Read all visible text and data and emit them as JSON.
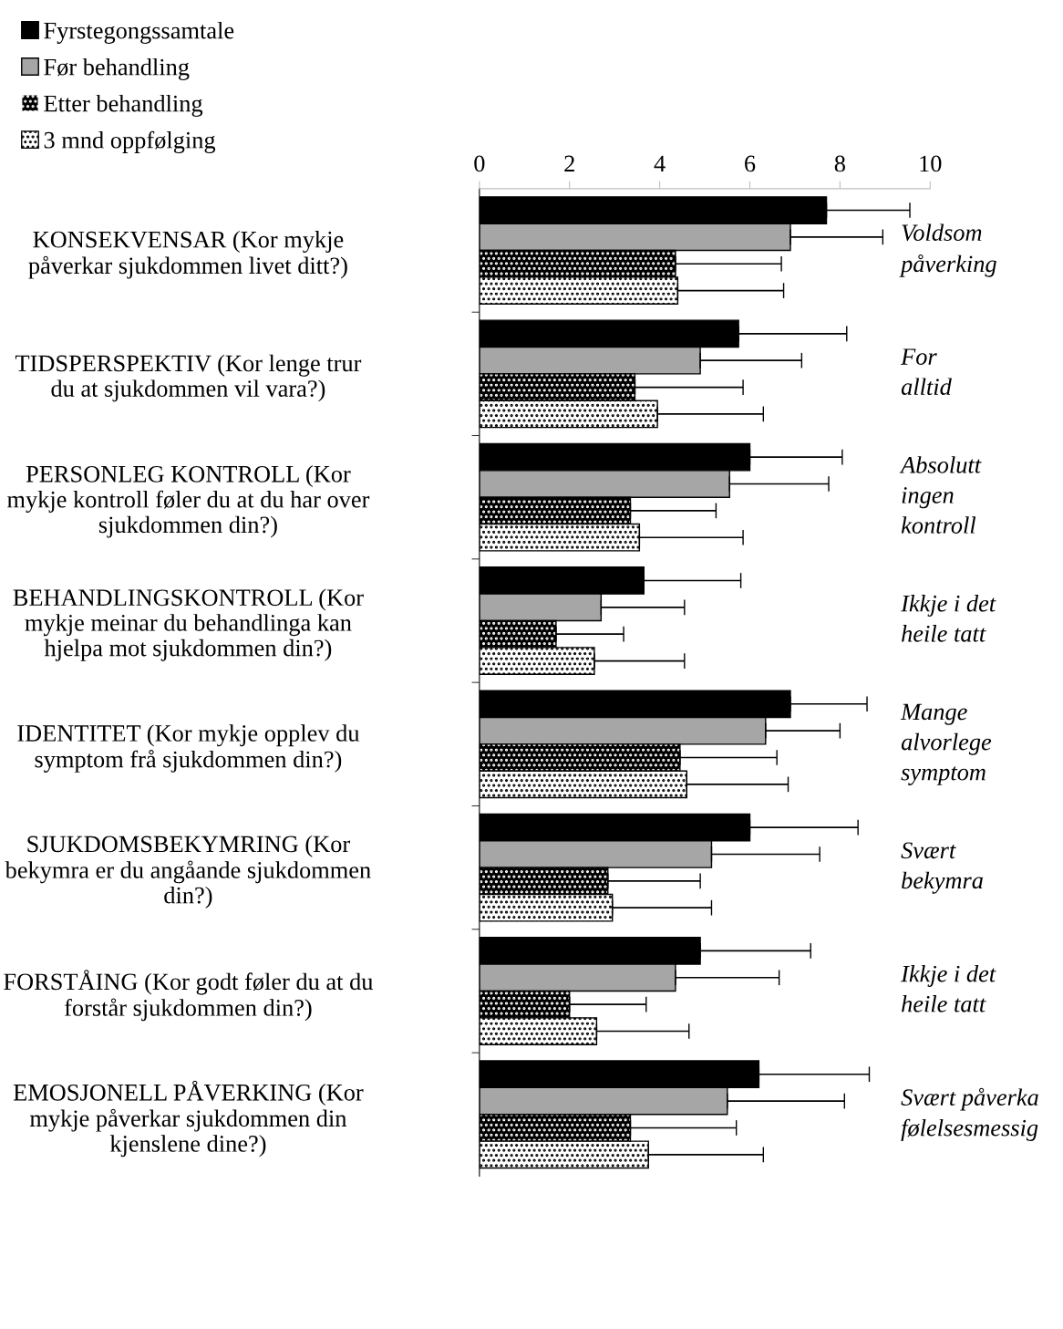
{
  "chart_data": {
    "type": "bar",
    "orientation": "horizontal",
    "legend": "top left",
    "grid": false,
    "categories": [
      "KONSEKVENSAR (Kor mykje\npåverkar sjukdommen livet ditt?)",
      "TIDSPERSPEKTIV (Kor lenge trur\ndu at sjukdommen vil vara?)",
      "PERSONLEG KONTROLL (Kor\nmykje kontroll føler du at du har over\nsjukdommen din?)",
      "BEHANDLINGSKONTROLL (Kor\nmykje meinar du behandlinga kan\nhjelpa mot sjukdommen din?)",
      "IDENTITET (Kor mykje opplev du\nsymptom frå sjukdommen din?)",
      "SJUKDOMSBEKYMRING (Kor\nbekymra er du angåande sjukdommen\ndin?)",
      "FORSTÅING (Kor godt føler du at du\nforstår sjukdommen din?)",
      "EMOSJONELL PÅVERKING (Kor\nmykje påverkar sjukdommen din\nkjenslene dine?)"
    ],
    "xlim": [
      0,
      10
    ],
    "xticks": [
      0,
      2,
      4,
      6,
      8,
      10
    ],
    "series": [
      {
        "name": "Fyrstegongssamtale",
        "color": "#000000",
        "values": [
          7.7,
          5.75,
          6.0,
          3.65,
          6.9,
          6.0,
          4.9,
          6.2
        ],
        "errors": [
          [
            7.7,
            9.55
          ],
          [
            5.75,
            8.15
          ],
          [
            6.0,
            8.05
          ],
          [
            3.65,
            5.8
          ],
          [
            6.9,
            8.6
          ],
          [
            6.0,
            8.4
          ],
          [
            4.9,
            7.35
          ],
          [
            6.2,
            8.65
          ]
        ]
      },
      {
        "name": "Før behandling",
        "color": "#a6a6a6",
        "values": [
          6.9,
          4.9,
          5.55,
          2.7,
          6.35,
          5.15,
          4.35,
          5.5
        ],
        "errors": [
          [
            6.9,
            8.95
          ],
          [
            4.9,
            7.15
          ],
          [
            5.55,
            7.75
          ],
          [
            2.7,
            4.55
          ],
          [
            6.35,
            8.0
          ],
          [
            5.15,
            7.55
          ],
          [
            4.35,
            6.65
          ],
          [
            5.5,
            8.1
          ]
        ]
      },
      {
        "name": "Etter behandling",
        "color": "#000000",
        "values": [
          4.35,
          3.45,
          3.35,
          1.7,
          4.45,
          2.85,
          2.0,
          3.35
        ],
        "errors": [
          [
            4.35,
            6.7
          ],
          [
            3.45,
            5.85
          ],
          [
            3.35,
            5.25
          ],
          [
            1.7,
            3.2
          ],
          [
            4.45,
            6.6
          ],
          [
            2.85,
            4.9
          ],
          [
            2.0,
            3.7
          ],
          [
            3.35,
            5.7
          ]
        ]
      },
      {
        "name": "3 mnd oppfølging",
        "color": "#ffffff",
        "values": [
          4.4,
          3.95,
          3.55,
          2.55,
          4.6,
          2.95,
          2.6,
          3.75
        ],
        "errors": [
          [
            4.4,
            6.75
          ],
          [
            3.95,
            6.3
          ],
          [
            3.55,
            5.85
          ],
          [
            2.55,
            4.55
          ],
          [
            4.6,
            6.85
          ],
          [
            2.95,
            5.15
          ],
          [
            2.6,
            4.65
          ],
          [
            3.75,
            6.3
          ]
        ]
      }
    ],
    "annotations": [
      "Voldsom\npåverking",
      "For\nalltid",
      "Absolutt\ningen\nkontroll",
      "Ikkje i det\nheile tatt",
      "Mange\nalvorlege\nsymptom",
      "Svært\nbekymra",
      "Ikkje i det\nheile tatt",
      "Svært påverka\nfølelsesmessig"
    ]
  }
}
